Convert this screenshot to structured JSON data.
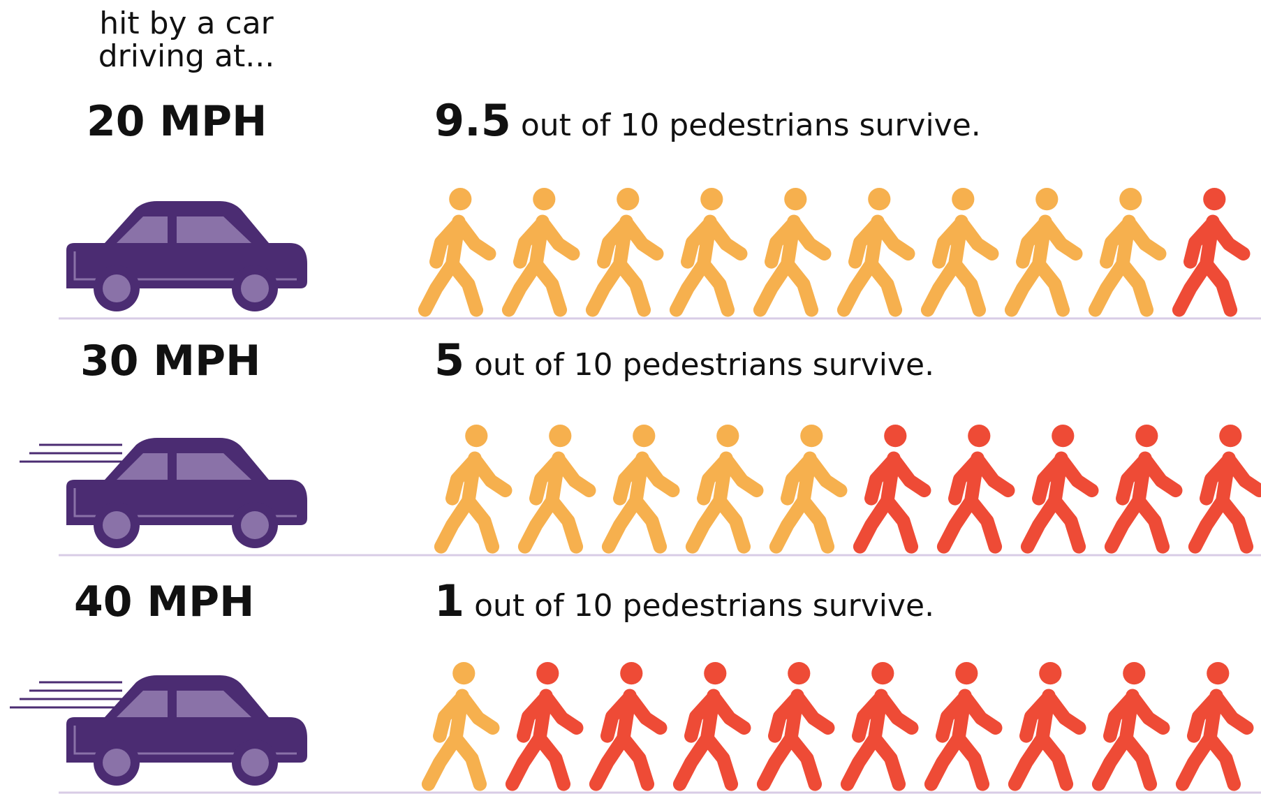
{
  "header": {
    "lines": [
      "hit by a car",
      "driving at..."
    ]
  },
  "rows": [
    {
      "speed": "20 MPH",
      "survivors": "9.5",
      "text": "out of 10 pedestrians survive.",
      "icons": 10,
      "survivor_icons": 9,
      "speed_lines": 0
    },
    {
      "speed": "30 MPH",
      "survivors": "5",
      "text": "out of 10 pedestrians survive.",
      "icons": 10,
      "survivor_icons": 5,
      "speed_lines": 3
    },
    {
      "speed": "40 MPH",
      "survivors": "1",
      "text": "out of 10 pedestrians survive.",
      "icons": 10,
      "survivor_icons": 1,
      "speed_lines": 4
    }
  ],
  "colors": {
    "survivor": "#f6b04e",
    "fatality": "#ee4b36",
    "car": "#4b2c72",
    "window": "#8a72a8",
    "ground": "#d8cce6"
  }
}
